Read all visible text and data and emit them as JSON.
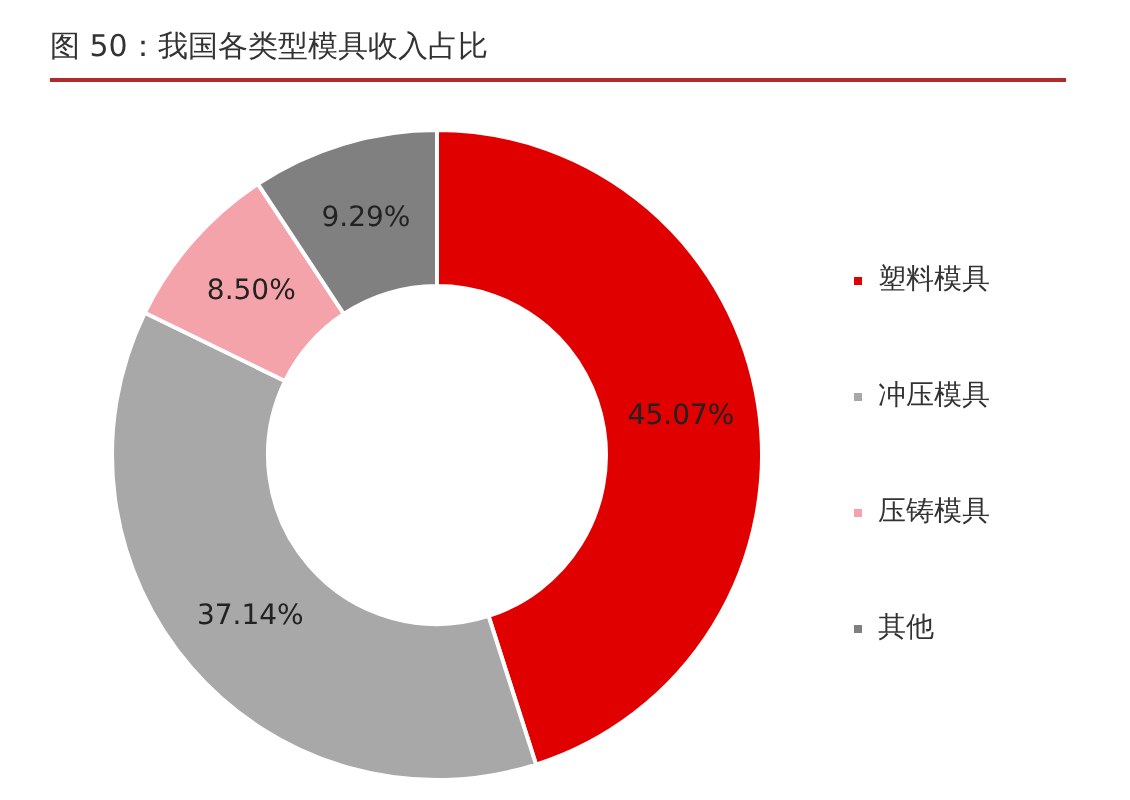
{
  "chart_data": {
    "type": "donut",
    "title": "图 50：我国各类型模具收入占比",
    "categories": [
      "塑料模具",
      "冲压模具",
      "压铸模具",
      "其他"
    ],
    "values": [
      45.07,
      37.14,
      8.5,
      9.29
    ],
    "colors": [
      "#e00000",
      "#a8a8a8",
      "#f4a3ab",
      "#808080"
    ],
    "value_labels": [
      "45.07%",
      "37.14%",
      "8.50%",
      "9.29%"
    ],
    "legend": "right"
  }
}
